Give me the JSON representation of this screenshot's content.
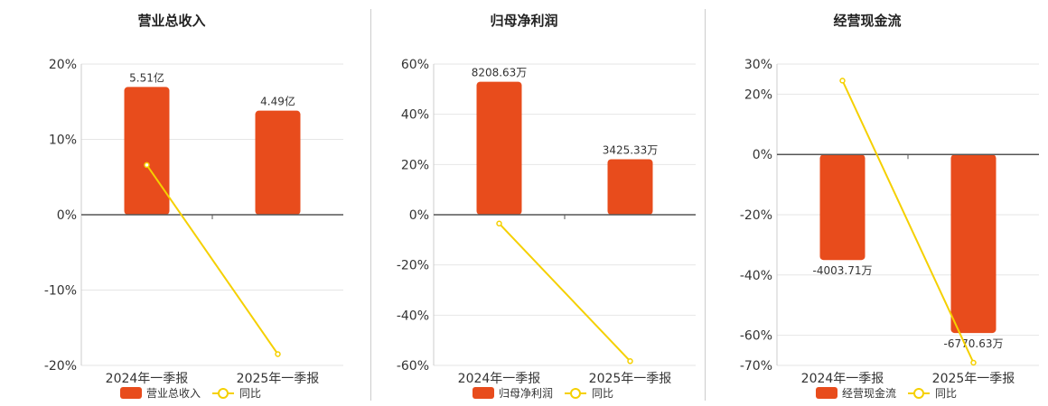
{
  "chart_data": [
    {
      "type": "bar",
      "title": "营业总收入",
      "categories": [
        "2024年一季报",
        "2025年一季报"
      ],
      "yticks": [
        "20%",
        "10%",
        "0%",
        "-10%",
        "-20%"
      ],
      "ylim": [
        -20,
        20
      ],
      "series": [
        {
          "name": "营业总收入",
          "kind": "bar",
          "axis": "right",
          "values": [
            5.51,
            4.49
          ],
          "labels": [
            "5.51亿",
            "4.49亿"
          ],
          "color": "#e84c1c"
        },
        {
          "name": "同比",
          "kind": "line",
          "axis": "left",
          "values": [
            6.6,
            -18.5
          ],
          "color": "#f5d000"
        }
      ],
      "bar_axis_range": [
        -6.5,
        6.5
      ],
      "legend": "bottom",
      "grid": true
    },
    {
      "type": "bar",
      "title": "归母净利润",
      "categories": [
        "2024年一季报",
        "2025年一季报"
      ],
      "yticks": [
        "60%",
        "40%",
        "20%",
        "0%",
        "-20%",
        "-40%",
        "-60%"
      ],
      "ylim": [
        -60,
        60
      ],
      "series": [
        {
          "name": "归母净利润",
          "kind": "bar",
          "axis": "right",
          "values": [
            8208.63,
            3425.33
          ],
          "labels": [
            "8208.63万",
            "3425.33万"
          ],
          "color": "#e84c1c"
        },
        {
          "name": "同比",
          "kind": "line",
          "axis": "left",
          "values": [
            -3.5,
            -58.3
          ],
          "color": "#f5d000"
        }
      ],
      "bar_axis_range": [
        -9300,
        9300
      ],
      "legend": "bottom",
      "grid": true
    },
    {
      "type": "bar",
      "title": "经营现金流",
      "categories": [
        "2024年一季报",
        "2025年一季报"
      ],
      "yticks": [
        "30%",
        "20%",
        "0%",
        "-20%",
        "-40%",
        "-60%",
        "-70%"
      ],
      "ylim": [
        -70,
        30
      ],
      "series": [
        {
          "name": "经营现金流",
          "kind": "bar",
          "axis": "right",
          "values": [
            -4003.71,
            -6770.63
          ],
          "labels": [
            "-4003.71万",
            "-6770.63万"
          ],
          "color": "#e84c1c"
        },
        {
          "name": "同比",
          "kind": "line",
          "axis": "left",
          "values": [
            24.5,
            -69.1
          ],
          "color": "#f5d000"
        }
      ],
      "bar_axis_range": [
        -8000,
        3430
      ],
      "legend": "bottom",
      "grid": true
    }
  ]
}
